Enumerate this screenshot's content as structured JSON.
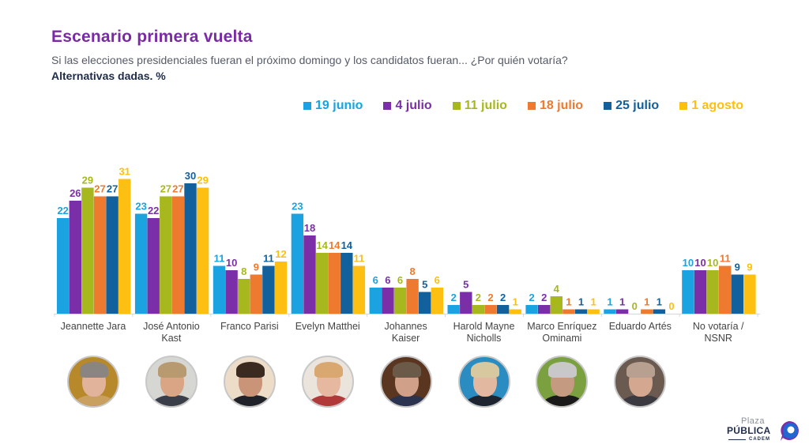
{
  "header": {
    "title": "Escenario primera vuelta",
    "subtitle": "Si las elecciones presidenciales fueran el próximo domingo y los candidatos fueran... ¿Por quién votaría?",
    "note": "Alternativas dadas. %"
  },
  "colors": {
    "title": "#7b2aa5",
    "series": [
      "#1aa3e0",
      "#7a2ea8",
      "#a6b81e",
      "#ee7a30",
      "#12609c",
      "#fdbf11"
    ]
  },
  "photos": [
    {
      "name": "Jeannette Jara",
      "bg": "#b8892a",
      "hair": "#8a8580",
      "face": "#e0b39a",
      "body": "#c9a060"
    },
    {
      "name": "José Antonio Kast",
      "bg": "#d6d6d2",
      "hair": "#b89a70",
      "face": "#d9a584",
      "body": "#3a3e48"
    },
    {
      "name": "Franco Parisi",
      "bg": "#ecdcc8",
      "hair": "#3a2a20",
      "face": "#c99478",
      "body": "#1f2228"
    },
    {
      "name": "Evelyn Matthei",
      "bg": "#eae4dc",
      "hair": "#d9a870",
      "face": "#e6b8a0",
      "body": "#b03a3a"
    },
    {
      "name": "Johannes Kaiser",
      "bg": "#5a3520",
      "hair": "#6b5a48",
      "face": "#d0a088",
      "body": "#2a3350"
    },
    {
      "name": "Harold Mayne Nicholls",
      "bg": "#2a8cc0",
      "hair": "#d8c8a0",
      "face": "#e2b8a0",
      "body": "#1e2430"
    },
    {
      "name": "Marco Enríquez Ominami",
      "bg": "#7aa040",
      "hair": "#c8c8c8",
      "face": "#c49a80",
      "body": "#1a1a1a"
    },
    {
      "name": "Eduardo Artés",
      "bg": "#6a5a50",
      "hair": "#b8a090",
      "face": "#d4a890",
      "body": "#3a3a40"
    }
  ],
  "logo": {
    "line1": "Plaza",
    "line2": "PÚBLICA",
    "line3": "CADEM"
  },
  "chart_data": {
    "type": "bar",
    "title": "Escenario primera vuelta",
    "subtitle": "Si las elecciones presidenciales fueran el próximo domingo y los candidatos fueran... ¿Por quién votaría?",
    "xlabel": "",
    "ylabel": "Alternativas dadas. %",
    "ylim": [
      0,
      33
    ],
    "grid": false,
    "legend_position": "top-right",
    "categories": [
      "Jeannette Jara",
      "José Antonio Kast",
      "Franco Parisi",
      "Evelyn Matthei",
      "Johannes Kaiser",
      "Harold Mayne Nicholls",
      "Marco Enríquez Ominami",
      "Eduardo Artés",
      "No votaría / NSNR"
    ],
    "category_lines": [
      [
        "Jeannette Jara"
      ],
      [
        "José Antonio",
        "Kast"
      ],
      [
        "Franco Parisi"
      ],
      [
        "Evelyn Matthei"
      ],
      [
        "Johannes",
        "Kaiser"
      ],
      [
        "Harold Mayne",
        "Nicholls"
      ],
      [
        "Marco Enríquez",
        "Ominami"
      ],
      [
        "Eduardo Artés"
      ],
      [
        "No votaría /",
        "NSNR"
      ]
    ],
    "series": [
      {
        "name": "19 junio",
        "color": "#1aa3e0",
        "values": [
          22,
          23,
          11,
          23,
          6,
          2,
          2,
          1,
          10
        ]
      },
      {
        "name": "4 julio",
        "color": "#7a2ea8",
        "values": [
          26,
          22,
          10,
          18,
          6,
          5,
          2,
          1,
          10
        ]
      },
      {
        "name": "11 julio",
        "color": "#a6b81e",
        "values": [
          29,
          27,
          8,
          14,
          6,
          2,
          4,
          0,
          10
        ]
      },
      {
        "name": "18 julio",
        "color": "#ee7a30",
        "values": [
          27,
          27,
          9,
          14,
          8,
          2,
          1,
          1,
          11
        ]
      },
      {
        "name": "25 julio",
        "color": "#12609c",
        "values": [
          27,
          30,
          11,
          14,
          5,
          2,
          1,
          1,
          9
        ]
      },
      {
        "name": "1 agosto",
        "color": "#fdbf11",
        "values": [
          31,
          29,
          12,
          11,
          6,
          1,
          1,
          0,
          9
        ]
      }
    ]
  }
}
